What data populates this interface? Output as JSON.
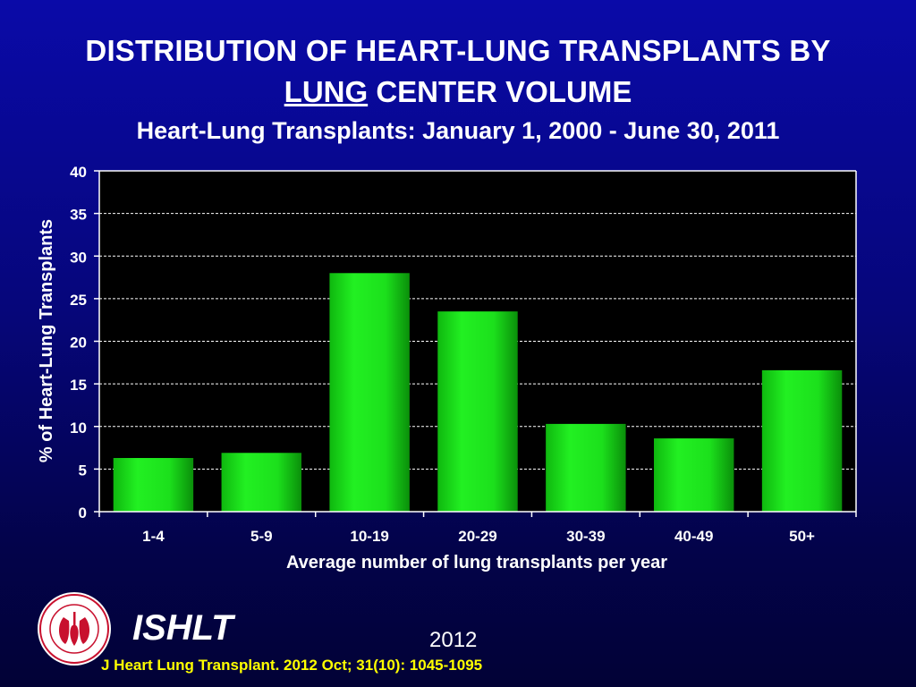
{
  "header": {
    "title_line1": "DISTRIBUTION OF HEART-LUNG TRANSPLANTS BY",
    "title_line2_underlined": "LUNG",
    "title_line2_rest": " CENTER VOLUME",
    "subtitle": "Heart-Lung Transplants: January 1, 2000 - June 30, 2011"
  },
  "chart_data": {
    "type": "bar",
    "categories": [
      "1-4",
      "5-9",
      "10-19",
      "20-29",
      "30-39",
      "40-49",
      "50+"
    ],
    "values": [
      6.3,
      6.9,
      28.0,
      23.5,
      10.3,
      8.6,
      16.6
    ],
    "xlabel": "Average number of lung transplants per year",
    "ylabel": "% of Heart-Lung Transplants",
    "ylim": [
      0,
      40
    ],
    "yticks": [
      0,
      5,
      10,
      15,
      20,
      25,
      30,
      35,
      40
    ],
    "grid": true,
    "colors": {
      "bar": "#19e019",
      "bar_dark": "#0a9a0a",
      "plot_bg": "#000000",
      "text": "#ffffff"
    }
  },
  "footer": {
    "org": "ISHLT",
    "year": "2012",
    "citation": "J Heart Lung Transplant.  2012 Oct; 31(10): 1045-1095",
    "citation_color": "#ffff00"
  }
}
